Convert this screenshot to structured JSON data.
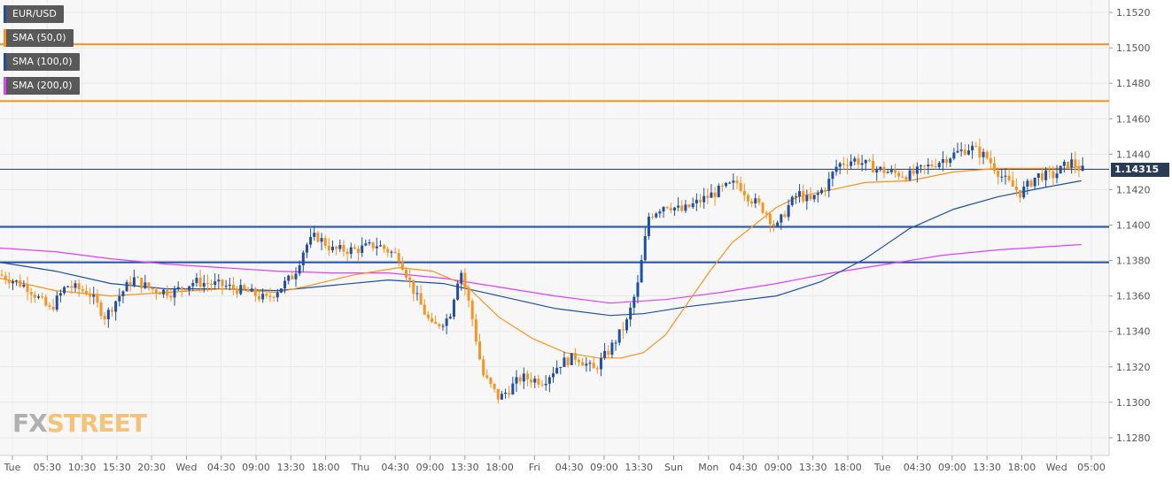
{
  "chart_data": {
    "type": "candlestick",
    "symbol": "EUR/USD",
    "legend": [
      {
        "label": "EUR/USD",
        "color": "#1e4fa3"
      },
      {
        "label": "SMA (50,0)",
        "color": "#f7931e"
      },
      {
        "label": "SMA (100,0)",
        "color": "#1e4fa3"
      },
      {
        "label": "SMA (200,0)",
        "color": "#e040fb"
      }
    ],
    "ylim": [
      1.127,
      1.1527
    ],
    "y_ticks": [
      "1.1280",
      "1.1300",
      "1.1320",
      "1.1340",
      "1.1360",
      "1.1380",
      "1.1400",
      "1.1420",
      "1.1440",
      "1.1460",
      "1.1480",
      "1.1500",
      "1.1520"
    ],
    "x_ticks": [
      "Tue",
      "05:30",
      "10:30",
      "15:30",
      "20:30",
      "Wed",
      "04:30",
      "09:00",
      "13:30",
      "18:00",
      "Thu",
      "04:30",
      "09:00",
      "13:30",
      "18:00",
      "Fri",
      "04:30",
      "09:00",
      "13:30",
      "Sun",
      "Mon",
      "04:30",
      "09:00",
      "13:30",
      "18:00",
      "Tue",
      "04:30",
      "09:00",
      "13:30",
      "18:00",
      "Wed",
      "05:00"
    ],
    "current_price": "1.14315",
    "current_price_value": 1.14315,
    "resistance_levels": [
      1.1502,
      1.147
    ],
    "support_levels": [
      1.1399,
      1.1379
    ],
    "colors": {
      "up": "#1e4fa3",
      "down": "#f7931e",
      "sma50": "#f7931e",
      "sma100": "#1e4fa3",
      "sma200": "#e040fb",
      "level_orange": "#f7931e",
      "level_blue": "#1e4fa3"
    },
    "close_path": [
      [
        0,
        1.1372
      ],
      [
        0.025,
        1.1365
      ],
      [
        0.045,
        1.1352
      ],
      [
        0.06,
        1.1366
      ],
      [
        0.08,
        1.1362
      ],
      [
        0.095,
        1.1348
      ],
      [
        0.105,
        1.1358
      ],
      [
        0.12,
        1.137
      ],
      [
        0.135,
        1.1364
      ],
      [
        0.155,
        1.1362
      ],
      [
        0.175,
        1.1368
      ],
      [
        0.2,
        1.1366
      ],
      [
        0.225,
        1.1362
      ],
      [
        0.24,
        1.1358
      ],
      [
        0.255,
        1.1366
      ],
      [
        0.265,
        1.1372
      ],
      [
        0.275,
        1.1388
      ],
      [
        0.285,
        1.1394
      ],
      [
        0.3,
        1.1386
      ],
      [
        0.32,
        1.1386
      ],
      [
        0.34,
        1.1389
      ],
      [
        0.36,
        1.1382
      ],
      [
        0.375,
        1.136
      ],
      [
        0.39,
        1.1342
      ],
      [
        0.405,
        1.1348
      ],
      [
        0.415,
        1.1376
      ],
      [
        0.425,
        1.135
      ],
      [
        0.435,
        1.1316
      ],
      [
        0.45,
        1.1302
      ],
      [
        0.47,
        1.1314
      ],
      [
        0.49,
        1.1312
      ],
      [
        0.505,
        1.1322
      ],
      [
        0.52,
        1.1326
      ],
      [
        0.535,
        1.1318
      ],
      [
        0.55,
        1.133
      ],
      [
        0.565,
        1.1345
      ],
      [
        0.575,
        1.1366
      ],
      [
        0.585,
        1.1405
      ],
      [
        0.6,
        1.1412
      ],
      [
        0.615,
        1.1408
      ],
      [
        0.635,
        1.1415
      ],
      [
        0.65,
        1.142
      ],
      [
        0.665,
        1.1424
      ],
      [
        0.675,
        1.1416
      ],
      [
        0.69,
        1.1408
      ],
      [
        0.7,
        1.1398
      ],
      [
        0.71,
        1.141
      ],
      [
        0.72,
        1.1418
      ],
      [
        0.73,
        1.1413
      ],
      [
        0.745,
        1.1422
      ],
      [
        0.755,
        1.1434
      ],
      [
        0.77,
        1.1437
      ],
      [
        0.785,
        1.1433
      ],
      [
        0.8,
        1.143
      ],
      [
        0.82,
        1.1428
      ],
      [
        0.84,
        1.1434
      ],
      [
        0.86,
        1.144
      ],
      [
        0.875,
        1.1444
      ],
      [
        0.89,
        1.1438
      ],
      [
        0.905,
        1.1426
      ],
      [
        0.92,
        1.1418
      ],
      [
        0.935,
        1.1428
      ],
      [
        0.95,
        1.1428
      ],
      [
        0.965,
        1.1436
      ],
      [
        0.975,
        1.1431
      ]
    ],
    "sma50": [
      [
        0,
        1.137
      ],
      [
        0.05,
        1.1363
      ],
      [
        0.1,
        1.136
      ],
      [
        0.15,
        1.1362
      ],
      [
        0.2,
        1.1364
      ],
      [
        0.25,
        1.1362
      ],
      [
        0.28,
        1.1366
      ],
      [
        0.32,
        1.1372
      ],
      [
        0.36,
        1.1376
      ],
      [
        0.39,
        1.1374
      ],
      [
        0.42,
        1.1366
      ],
      [
        0.45,
        1.1348
      ],
      [
        0.48,
        1.1336
      ],
      [
        0.51,
        1.1328
      ],
      [
        0.54,
        1.1325
      ],
      [
        0.56,
        1.1325
      ],
      [
        0.58,
        1.1328
      ],
      [
        0.6,
        1.1338
      ],
      [
        0.62,
        1.1356
      ],
      [
        0.64,
        1.1374
      ],
      [
        0.66,
        1.139
      ],
      [
        0.68,
        1.14
      ],
      [
        0.7,
        1.141
      ],
      [
        0.72,
        1.1416
      ],
      [
        0.75,
        1.142
      ],
      [
        0.78,
        1.1424
      ],
      [
        0.82,
        1.1425
      ],
      [
        0.86,
        1.143
      ],
      [
        0.9,
        1.1432
      ],
      [
        0.93,
        1.1432
      ],
      [
        0.96,
        1.1432
      ],
      [
        0.975,
        1.1433
      ]
    ],
    "sma100": [
      [
        0,
        1.1379
      ],
      [
        0.05,
        1.1374
      ],
      [
        0.1,
        1.1367
      ],
      [
        0.15,
        1.1364
      ],
      [
        0.2,
        1.1364
      ],
      [
        0.25,
        1.1363
      ],
      [
        0.3,
        1.1366
      ],
      [
        0.35,
        1.1369
      ],
      [
        0.4,
        1.1367
      ],
      [
        0.45,
        1.136
      ],
      [
        0.5,
        1.1353
      ],
      [
        0.55,
        1.1349
      ],
      [
        0.58,
        1.135
      ],
      [
        0.62,
        1.1354
      ],
      [
        0.66,
        1.1357
      ],
      [
        0.7,
        1.136
      ],
      [
        0.74,
        1.1368
      ],
      [
        0.78,
        1.1381
      ],
      [
        0.82,
        1.1398
      ],
      [
        0.86,
        1.1409
      ],
      [
        0.9,
        1.1416
      ],
      [
        0.94,
        1.1421
      ],
      [
        0.975,
        1.1425
      ]
    ],
    "sma200": [
      [
        0,
        1.1387
      ],
      [
        0.05,
        1.1385
      ],
      [
        0.1,
        1.1381
      ],
      [
        0.15,
        1.1378
      ],
      [
        0.2,
        1.1376
      ],
      [
        0.25,
        1.1374
      ],
      [
        0.3,
        1.1373
      ],
      [
        0.35,
        1.1373
      ],
      [
        0.4,
        1.137
      ],
      [
        0.45,
        1.1365
      ],
      [
        0.5,
        1.136
      ],
      [
        0.55,
        1.1356
      ],
      [
        0.6,
        1.1358
      ],
      [
        0.65,
        1.1362
      ],
      [
        0.7,
        1.1367
      ],
      [
        0.75,
        1.1373
      ],
      [
        0.8,
        1.1378
      ],
      [
        0.85,
        1.1383
      ],
      [
        0.9,
        1.1386
      ],
      [
        0.95,
        1.1388
      ],
      [
        0.975,
        1.1389
      ]
    ]
  },
  "brand": {
    "fx": "FX",
    "street": "STREET"
  }
}
